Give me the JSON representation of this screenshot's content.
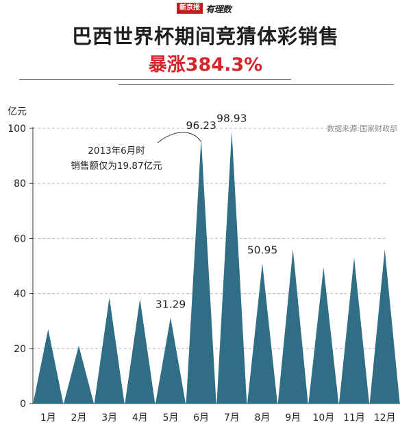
{
  "header": {
    "brand_red": "新京报",
    "brand_script": "有理数",
    "title": "巴西世界杯期间竞猜体彩销售",
    "subtitle": "暴涨384.3%"
  },
  "annotation": {
    "line1": "2013年6月时",
    "line2": "销售额仅为19.87亿元"
  },
  "source": "数据来源:国家财政部",
  "colors": {
    "bar": "#2f6e85",
    "accent": "#d6262b",
    "grid": "#bbbbbb"
  },
  "chart_data": {
    "type": "area",
    "categories": [
      "1月",
      "2月",
      "3月",
      "4月",
      "5月",
      "6月",
      "7月",
      "8月",
      "9月",
      "10月",
      "11月",
      "12月"
    ],
    "values": [
      27,
      21,
      38.5,
      38,
      31.29,
      96.23,
      98.93,
      50.95,
      56,
      49.5,
      53,
      56
    ],
    "data_labels": [
      {
        "index": 4,
        "text": "31.29"
      },
      {
        "index": 5,
        "text": "96.23"
      },
      {
        "index": 6,
        "text": "98.93"
      },
      {
        "index": 7,
        "text": "50.95"
      }
    ],
    "ylabel": "亿元",
    "ylim": [
      0,
      100
    ],
    "yticks": [
      0,
      20,
      40,
      60,
      80,
      100
    ],
    "grid": true
  }
}
